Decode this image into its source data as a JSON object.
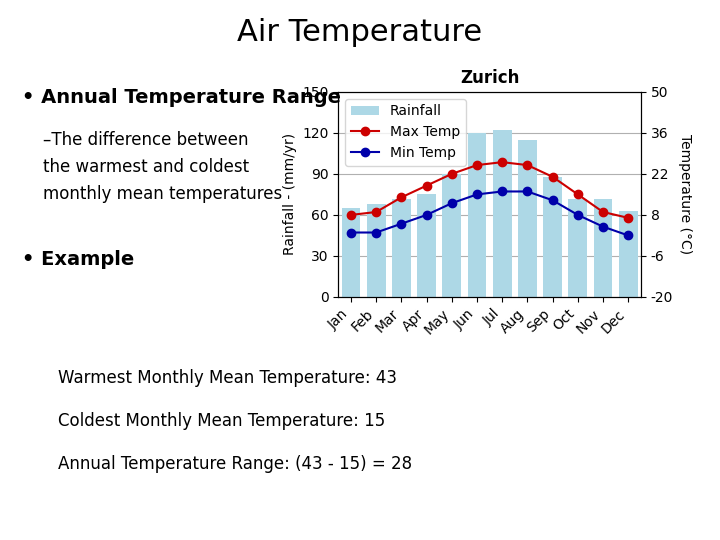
{
  "chart_data": {
    "type": "bar",
    "title": "Zurich",
    "categories": [
      "Jan",
      "Feb",
      "Mar",
      "Apr",
      "May",
      "Jun",
      "Jul",
      "Aug",
      "Sep",
      "Oct",
      "Nov",
      "Dec"
    ],
    "series": [
      {
        "name": "Rainfall",
        "type": "bar",
        "color": "#ADD8E6",
        "values": [
          65,
          68,
          72,
          75,
          90,
          120,
          122,
          115,
          88,
          72,
          72,
          63
        ]
      },
      {
        "name": "Max Temp",
        "type": "line",
        "axis": "y2",
        "color": "#CC0000",
        "marker": "o",
        "values": [
          8,
          9,
          14,
          18,
          22,
          25,
          26,
          25,
          21,
          15,
          9,
          7
        ]
      },
      {
        "name": "Min Temp",
        "type": "line",
        "axis": "y2",
        "color": "#0000AA",
        "marker": "o",
        "values": [
          2,
          2,
          5,
          8,
          12,
          15,
          16,
          16,
          13,
          8,
          4,
          1
        ]
      }
    ],
    "ylabel": "Rainfall - (mm/yr)",
    "y2label": "Temperature (°C)",
    "ylim": [
      0,
      150
    ],
    "yticks": [
      0,
      30,
      60,
      90,
      120,
      150
    ],
    "y2lim": [
      -20,
      50
    ],
    "y2ticks": [
      -20,
      -6,
      8,
      22,
      36,
      50
    ],
    "grid": true,
    "legend": "upper left",
    "annotations": [
      "Air Temperature",
      "• Annual Temperature Range",
      "–The difference between",
      "the warmest and coldest",
      "monthly mean temperatures",
      "• Example",
      "Warmest Monthly Mean Temperature: 43",
      "Coldest Monthly Mean Temperature: 15",
      "Annual Temperature Range: (43 - 15) = 28"
    ]
  }
}
